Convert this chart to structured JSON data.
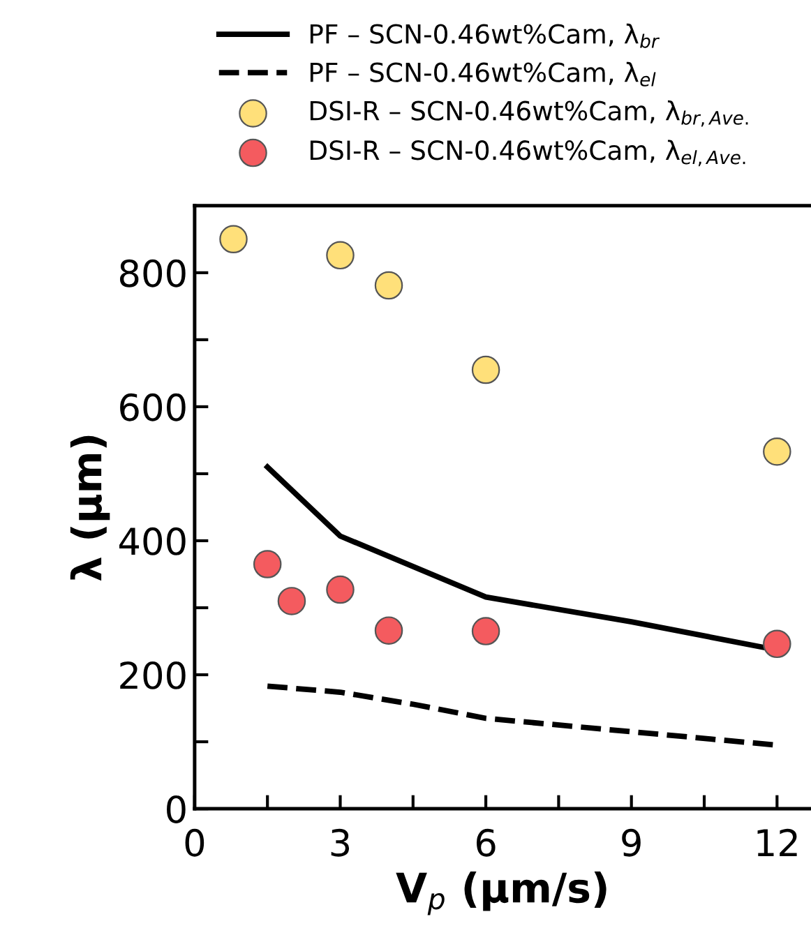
{
  "chart_data": {
    "type": "line",
    "xlabel": "V$_{p}$ (µm/s)",
    "ylabel": "λ (µm)",
    "xlim": [
      0,
      12.7
    ],
    "ylim": [
      0,
      900
    ],
    "xticks": [
      0,
      {
        "value": 1.5,
        "label": null
      },
      3,
      {
        "value": 4.5,
        "label": null
      },
      6,
      {
        "value": 7.5,
        "label": null
      },
      9,
      {
        "value": 10.5,
        "label": null
      },
      12
    ],
    "yticks": [
      0,
      {
        "value": 100,
        "label": null
      },
      200,
      {
        "value": 300,
        "label": null
      },
      400,
      {
        "value": 500,
        "label": null
      },
      600,
      {
        "value": 700,
        "label": null
      },
      800
    ],
    "grid": false,
    "legend": "top",
    "series": [
      {
        "name": "PF – SCN-0.46wt%Cam, λ$_{br}$",
        "line_style": "solid",
        "marker": "none",
        "color": "#000000",
        "x": [
          1.5,
          3,
          6,
          9,
          12
        ],
        "values": [
          510,
          407,
          316,
          279,
          237
        ]
      },
      {
        "name": "PF – SCN-0.46wt%Cam, λ$_{el}$",
        "line_style": "dashed",
        "marker": "none",
        "color": "#000000",
        "x": [
          1.5,
          3,
          4.5,
          6,
          12
        ],
        "values": [
          183,
          174,
          156,
          135,
          95
        ]
      },
      {
        "name": "DSI-R – SCN-0.46wt%Cam, λ$_{br,Ave.}$",
        "type": "scatter",
        "marker": "circle",
        "color": "#ffe07a",
        "x": [
          0.8,
          3,
          4,
          6,
          12
        ],
        "values": [
          850,
          826,
          781,
          655,
          533
        ]
      },
      {
        "name": "DSI-R – SCN-0.46wt%Cam, λ$_{el,Ave.}$",
        "type": "scatter",
        "marker": "circle",
        "color": "#f45b5f",
        "x": [
          1.5,
          2,
          3,
          4,
          6,
          12
        ],
        "values": [
          365,
          310,
          327,
          266,
          265,
          246
        ]
      }
    ]
  }
}
